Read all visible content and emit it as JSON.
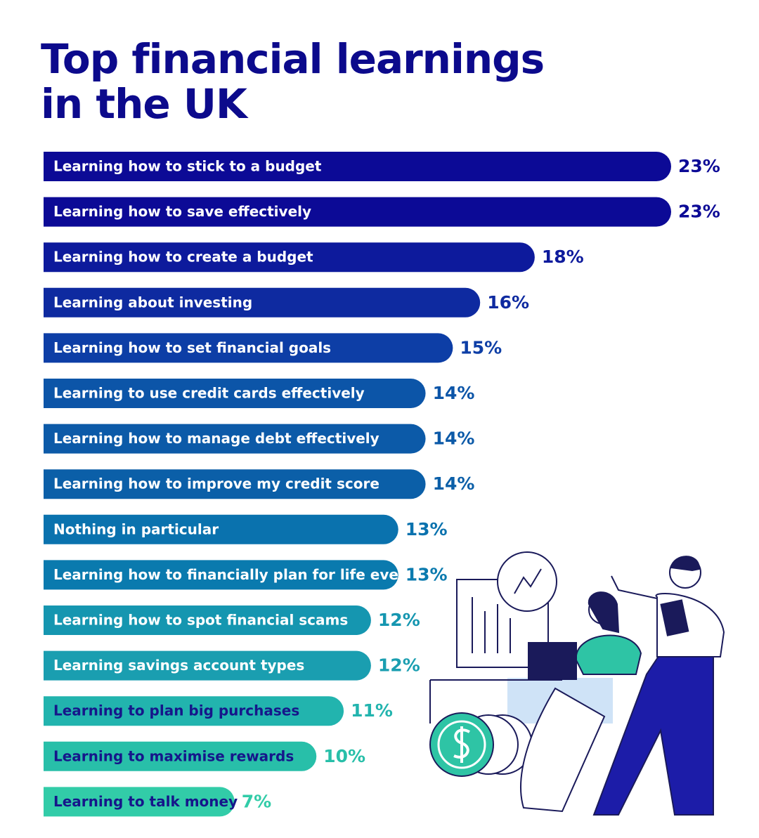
{
  "chart_data": {
    "type": "bar",
    "orientation": "horizontal",
    "title": "Top financial learnings in the UK",
    "categories": [
      "Learning how to stick to a budget",
      "Learning how to save effectively",
      "Learning how to create a budget",
      "Learning about investing",
      "Learning how to set financial goals",
      "Learning to use credit cards effectively",
      "Learning how to manage debt effectively",
      "Learning how to improve my credit score",
      "Nothing in particular",
      "Learning how to financially plan for life events",
      "Learning how to spot financial scams",
      "Learning savings account types",
      "Learning to plan big purchases",
      "Learning to maximise rewards",
      "Learning to talk money"
    ],
    "values": [
      23,
      23,
      18,
      16,
      15,
      14,
      14,
      14,
      13,
      13,
      12,
      12,
      11,
      10,
      7
    ],
    "value_labels": [
      "23%",
      "23%",
      "18%",
      "16%",
      "15%",
      "14%",
      "14%",
      "14%",
      "13%",
      "13%",
      "12%",
      "12%",
      "11%",
      "10%",
      "7%"
    ],
    "colors": [
      "#0c0a96",
      "#0c0a96",
      "#0d1a9c",
      "#0e2aa0",
      "#0d3ea6",
      "#0c55a8",
      "#0c5aa8",
      "#0b5fa8",
      "#0a72ae",
      "#0a7aae",
      "#1596b0",
      "#1a9eb0",
      "#22b4ae",
      "#28bfa9",
      "#32cca8"
    ]
  }
}
